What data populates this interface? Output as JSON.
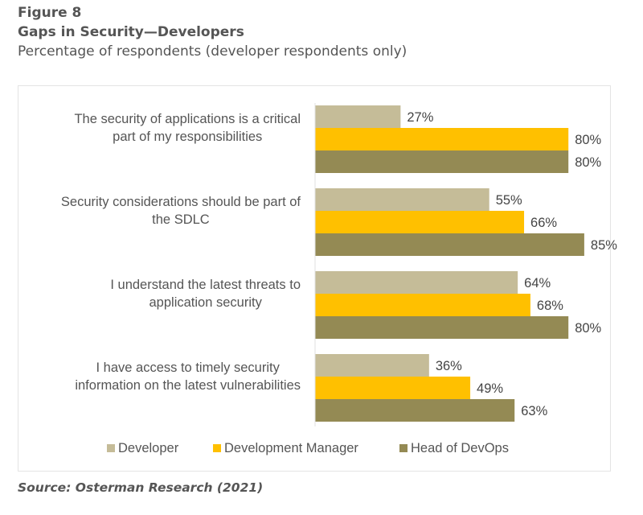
{
  "header": {
    "figure_label": "Figure 8",
    "title": "Gaps in Security—Developers",
    "subtitle": "Percentage of respondents (developer respondents only)"
  },
  "source": "Source: Osterman Research (2021)",
  "chart_data": {
    "type": "bar",
    "orientation": "horizontal",
    "title": "Gaps in Security—Developers",
    "subtitle": "Percentage of respondents (developer respondents only)",
    "xlabel": "",
    "ylabel": "",
    "xlim": [
      0,
      100
    ],
    "grid": false,
    "legend_position": "bottom",
    "value_suffix": "%",
    "categories": [
      [
        "The security of applications is a critical",
        "part of my responsibilities"
      ],
      [
        "Security considerations should be part of",
        "the SDLC"
      ],
      [
        "I understand the latest threats to",
        "application security"
      ],
      [
        "I have access to timely security",
        "information on the latest vulnerabilities"
      ]
    ],
    "series": [
      {
        "name": "Developer",
        "color": "#c5bc98",
        "values": [
          27,
          55,
          64,
          36
        ]
      },
      {
        "name": "Development Manager",
        "color": "#ffc000",
        "values": [
          80,
          66,
          68,
          49
        ]
      },
      {
        "name": "Head of DevOps",
        "color": "#948a54",
        "values": [
          80,
          85,
          80,
          63
        ]
      }
    ]
  }
}
